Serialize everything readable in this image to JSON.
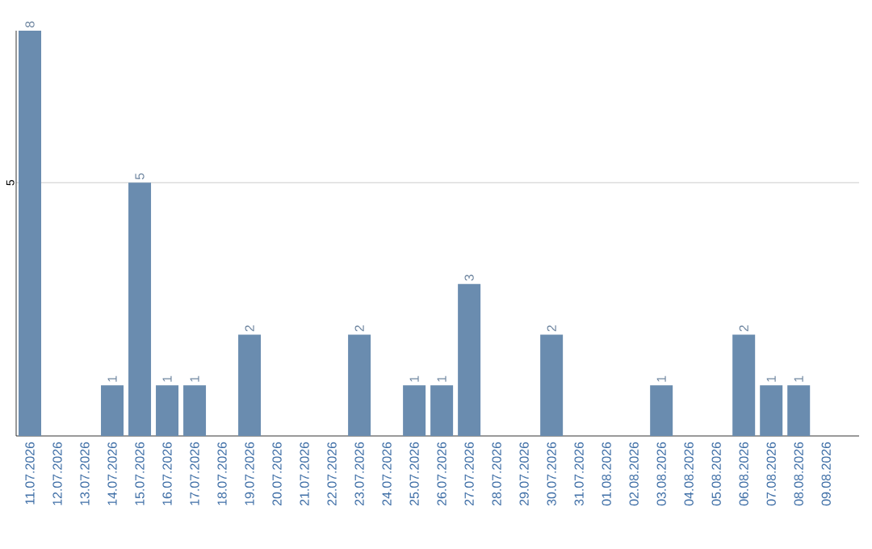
{
  "chart_data": {
    "type": "bar",
    "categories": [
      "11.07.2026",
      "12.07.2026",
      "13.07.2026",
      "14.07.2026",
      "15.07.2026",
      "16.07.2026",
      "17.07.2026",
      "18.07.2026",
      "19.07.2026",
      "20.07.2026",
      "21.07.2026",
      "22.07.2026",
      "23.07.2026",
      "24.07.2026",
      "25.07.2026",
      "26.07.2026",
      "27.07.2026",
      "28.07.2026",
      "29.07.2026",
      "30.07.2026",
      "31.07.2026",
      "01.08.2026",
      "02.08.2026",
      "03.08.2026",
      "04.08.2026",
      "05.08.2026",
      "06.08.2026",
      "07.08.2026",
      "08.08.2026",
      "09.08.2026"
    ],
    "values": [
      8,
      0,
      0,
      1,
      5,
      1,
      1,
      0,
      2,
      0,
      0,
      0,
      2,
      0,
      1,
      1,
      3,
      0,
      0,
      2,
      0,
      0,
      0,
      1,
      0,
      0,
      2,
      1,
      1,
      0
    ],
    "value_labels": [
      "8",
      null,
      null,
      "1",
      "5",
      "1",
      "1",
      null,
      "2",
      null,
      null,
      null,
      "2",
      null,
      "1",
      "1",
      "3",
      null,
      null,
      "2",
      null,
      null,
      null,
      "1",
      null,
      null,
      "2",
      "1",
      "1",
      null
    ],
    "color": "#6a8caf",
    "ylim": [
      0,
      8
    ],
    "yticks": [
      5
    ],
    "grid": "y"
  }
}
